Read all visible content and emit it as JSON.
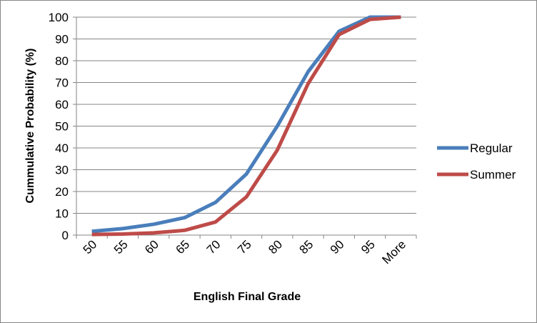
{
  "chart_data": {
    "type": "line",
    "title": "",
    "xlabel": "English Final Grade",
    "ylabel": "Cummulative Probability (%)",
    "categories": [
      "50",
      "55",
      "60",
      "65",
      "70",
      "75",
      "80",
      "85",
      "90",
      "95",
      "More"
    ],
    "ylim": [
      0,
      100
    ],
    "yticks": [
      0,
      10,
      20,
      30,
      40,
      50,
      60,
      70,
      80,
      90,
      100
    ],
    "grid": "horizontal",
    "legend_position": "right",
    "series": [
      {
        "name": "Regular",
        "color": "#4a7ebb",
        "values": [
          1.7,
          3.0,
          5.0,
          8.0,
          15.0,
          28.0,
          50.0,
          75.0,
          93.5,
          100,
          100
        ]
      },
      {
        "name": "Summer",
        "color": "#be4b48",
        "values": [
          0.3,
          0.5,
          1.0,
          2.2,
          6.0,
          17.5,
          39.0,
          69.5,
          92.0,
          99.0,
          100
        ]
      }
    ]
  }
}
